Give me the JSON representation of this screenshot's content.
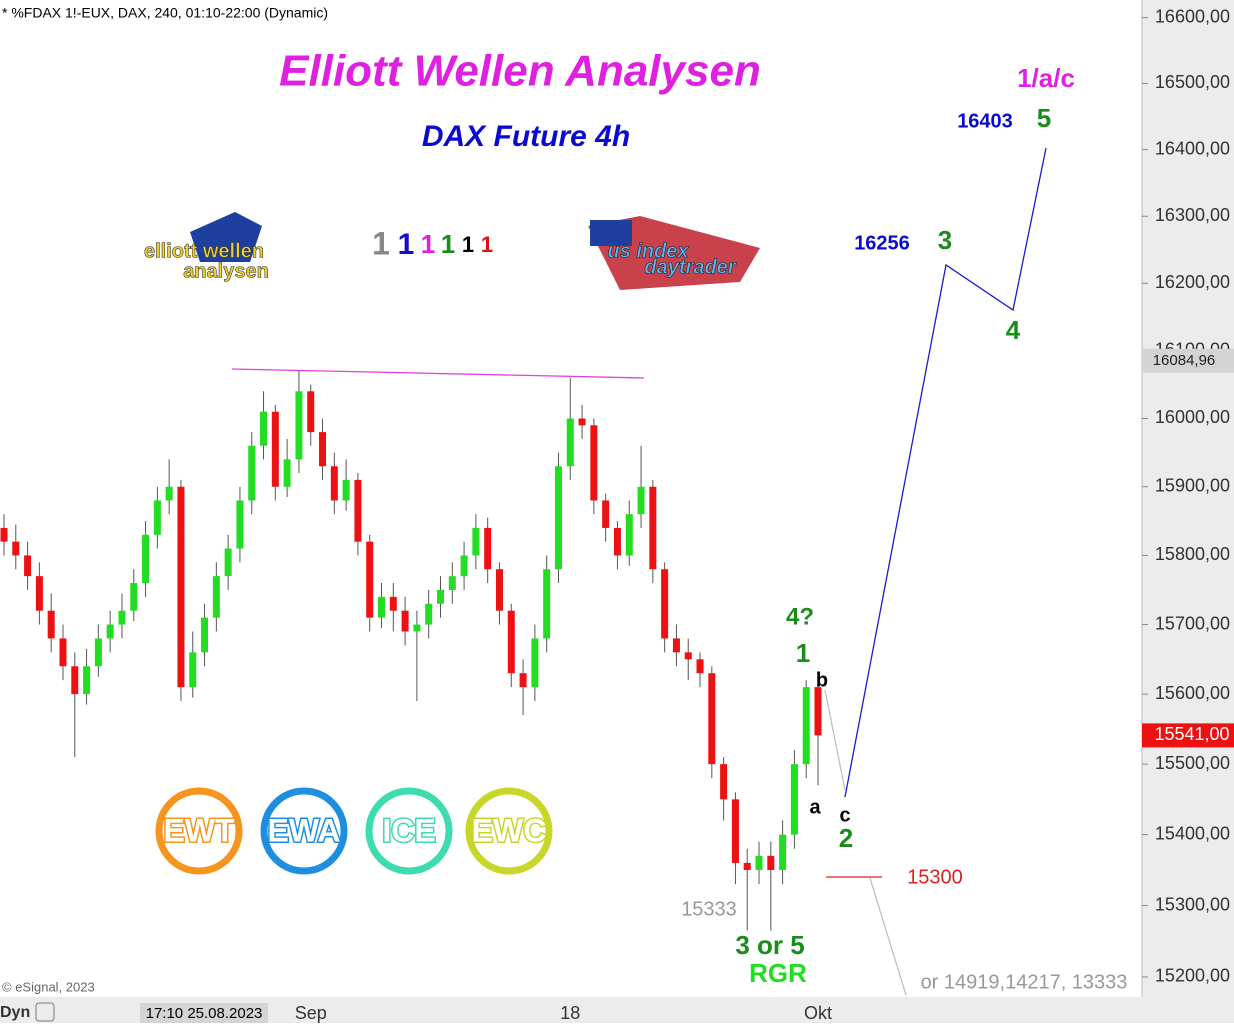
{
  "chart_data": {
    "type": "candlestick",
    "header": "* %FDAX 1!-EUX, DAX, 240, 01:10-22:00 (Dynamic)",
    "title": "Elliott Wellen Analysen",
    "subtitle": "DAX Future 4h",
    "log_scale": true,
    "ylim": [
      15172,
      16627
    ],
    "yticks": [
      {
        "value": 15200,
        "label": "15200,00"
      },
      {
        "value": 15300,
        "label": "15300,00"
      },
      {
        "value": 15400,
        "label": "15400,00"
      },
      {
        "value": 15500,
        "label": "15500,00"
      },
      {
        "value": 15600,
        "label": "15600,00"
      },
      {
        "value": 15700,
        "label": "15700,00"
      },
      {
        "value": 15800,
        "label": "15800,00"
      },
      {
        "value": 15900,
        "label": "15900,00"
      },
      {
        "value": 16000,
        "label": "16000,00"
      },
      {
        "value": 16100,
        "label": "16100,00"
      },
      {
        "value": 16200,
        "label": "16200,00"
      },
      {
        "value": 16300,
        "label": "16300,00"
      },
      {
        "value": 16400,
        "label": "16400,00"
      },
      {
        "value": 16500,
        "label": "16500,00"
      },
      {
        "value": 16600,
        "label": "16600,00"
      }
    ],
    "up_color": "#22dd22",
    "down_color": "#ee1111",
    "categories": [
      null,
      null,
      null,
      null,
      null,
      null,
      null,
      null,
      null,
      null,
      null,
      null,
      null,
      null,
      null,
      null,
      null,
      null,
      null,
      null,
      null,
      null,
      null,
      null,
      null,
      null,
      "Sep",
      null,
      null,
      null,
      null,
      null,
      null,
      null,
      null,
      null,
      null,
      null,
      null,
      null,
      null,
      null,
      null,
      null,
      null,
      null,
      null,
      null,
      "18",
      null,
      null,
      null,
      null,
      null,
      null,
      null,
      null,
      null,
      null,
      null,
      null,
      null,
      null,
      null,
      null,
      null,
      null,
      null,
      null,
      "Okt"
    ],
    "open": [
      15840,
      15820,
      15800,
      15770,
      15720,
      15680,
      15640,
      15600,
      15640,
      15680,
      15700,
      15720,
      15760,
      15830,
      15880,
      15900,
      15610,
      15660,
      15710,
      15770,
      15810,
      15880,
      15960,
      16010,
      15900,
      15940,
      16040,
      15980,
      15930,
      15880,
      15910,
      15820,
      15710,
      15740,
      15720,
      15690,
      15700,
      15730,
      15750,
      15770,
      15800,
      15840,
      15780,
      15720,
      15630,
      15610,
      15680,
      15780,
      15930,
      16000,
      15990,
      15880,
      15840,
      15800,
      15860,
      15900,
      15780,
      15680,
      15660,
      15650,
      15630,
      15500,
      15450,
      15360,
      15350,
      15370,
      15350,
      15400,
      15500,
      15610
    ],
    "high": [
      15860,
      15845,
      15820,
      15790,
      15745,
      15700,
      15660,
      15665,
      15700,
      15720,
      15745,
      15780,
      15850,
      15900,
      15940,
      15910,
      15690,
      15730,
      15790,
      15830,
      15900,
      15980,
      16040,
      16020,
      15970,
      16070,
      16050,
      16000,
      15950,
      15940,
      15920,
      15830,
      15760,
      15760,
      15740,
      15720,
      15750,
      15770,
      15790,
      15820,
      15860,
      15855,
      15790,
      15730,
      15650,
      15700,
      15800,
      15950,
      16060,
      16020,
      16000,
      15890,
      15850,
      15880,
      15960,
      15910,
      15790,
      15700,
      15680,
      15660,
      15640,
      15510,
      15460,
      15380,
      15390,
      15390,
      15420,
      15520,
      15620,
      15620
    ],
    "low": [
      15800,
      15780,
      15750,
      15700,
      15660,
      15620,
      15510,
      15585,
      15625,
      15660,
      15680,
      15705,
      15740,
      15810,
      15860,
      15590,
      15595,
      15640,
      15690,
      15750,
      15790,
      15860,
      15940,
      15880,
      15885,
      15920,
      15960,
      15910,
      15860,
      15865,
      15800,
      15690,
      15695,
      15690,
      15670,
      15590,
      15680,
      15710,
      15730,
      15750,
      15780,
      15760,
      15700,
      15610,
      15570,
      15590,
      15660,
      15760,
      15910,
      15970,
      15860,
      15820,
      15780,
      15785,
      15840,
      15760,
      15660,
      15640,
      15620,
      15610,
      15480,
      15420,
      15330,
      15265,
      15330,
      15265,
      15330,
      15380,
      15480,
      15470
    ],
    "close": [
      15820,
      15800,
      15770,
      15720,
      15680,
      15640,
      15600,
      15640,
      15680,
      15700,
      15720,
      15760,
      15830,
      15880,
      15900,
      15610,
      15660,
      15710,
      15770,
      15810,
      15880,
      15960,
      16010,
      15900,
      15940,
      16040,
      15980,
      15930,
      15880,
      15910,
      15820,
      15710,
      15740,
      15720,
      15690,
      15700,
      15730,
      15750,
      15770,
      15800,
      15840,
      15780,
      15720,
      15630,
      15610,
      15680,
      15780,
      15930,
      16000,
      15990,
      15880,
      15840,
      15800,
      15860,
      15900,
      15780,
      15680,
      15660,
      15650,
      15630,
      15500,
      15450,
      15360,
      15350,
      15370,
      15350,
      15400,
      15500,
      15610,
      15541
    ],
    "price_labels": [
      {
        "value": 16084.96,
        "label": "16084,96",
        "color": "#d4d4d4"
      },
      {
        "value": 15541,
        "label": "15541,00",
        "color": "#ee1111"
      }
    ],
    "counters": [
      {
        "text": "1",
        "color": "#888888"
      },
      {
        "text": "1",
        "color": "#1010cc"
      },
      {
        "text": "1",
        "color": "#e020e0"
      },
      {
        "text": "1",
        "color": "#1a8c1a"
      },
      {
        "text": "1",
        "color": "#000000"
      },
      {
        "text": "1",
        "color": "#dd1111"
      }
    ],
    "logos": [
      "elliott wellen",
      "analysen",
      "us index",
      "daytrader"
    ],
    "badges": [
      {
        "text": "EWT",
        "color": "#f7941d"
      },
      {
        "text": "EWA",
        "color": "#1e8fe0"
      },
      {
        "text": "ICE",
        "color": "#3ddbb0"
      },
      {
        "text": "EWC",
        "color": "#c8d62a"
      }
    ],
    "annotations": [
      {
        "text": "1/a/c",
        "color": "#e020e0"
      },
      {
        "text": "16403",
        "color": "#0a0ad0"
      },
      {
        "text": "5",
        "color": "#1a8c1a"
      },
      {
        "text": "16256",
        "color": "#0a0ad0"
      },
      {
        "text": "3",
        "color": "#1a8c1a"
      },
      {
        "text": "4",
        "color": "#1a8c1a"
      },
      {
        "text": "4?",
        "color": "#1a8c1a"
      },
      {
        "text": "1",
        "color": "#1a8c1a"
      },
      {
        "text": "b",
        "color": "#000000"
      },
      {
        "text": "a",
        "color": "#000000"
      },
      {
        "text": "c",
        "color": "#000000"
      },
      {
        "text": "2",
        "color": "#1a8c1a"
      },
      {
        "text": "15333",
        "color": "#999999"
      },
      {
        "text": "3 or 5",
        "color": "#1a8c1a"
      },
      {
        "text": "RGR",
        "color": "#22dd22"
      },
      {
        "text": "15300",
        "color": "#dd2222"
      },
      {
        "text": "or 14919,14217, 13333",
        "color": "#999999"
      }
    ],
    "footer": {
      "copyright": "© eSignal, 2023",
      "mode": "Dyn",
      "date": "17:10 25.08.2023"
    }
  }
}
